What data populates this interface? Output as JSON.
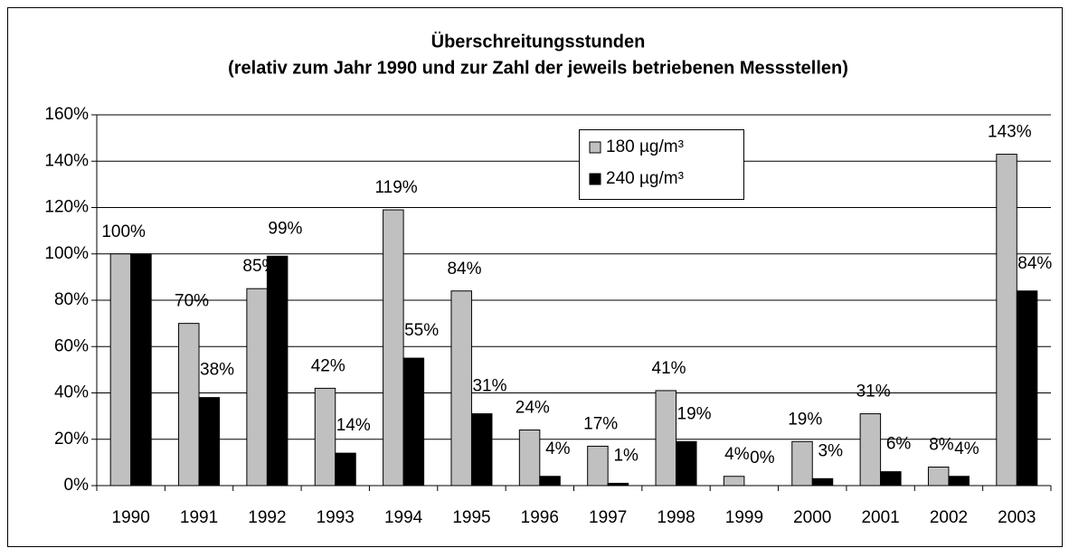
{
  "chart_data": {
    "type": "bar",
    "title": "Überschreitungsstunden",
    "subtitle": "(relativ zum Jahr 1990 und zur Zahl der jeweils betriebenen Messstellen)",
    "categories": [
      "1990",
      "1991",
      "1992",
      "1993",
      "1994",
      "1995",
      "1996",
      "1997",
      "1998",
      "1999",
      "2000",
      "2001",
      "2002",
      "2003"
    ],
    "series": [
      {
        "name": "180 µg/m³",
        "color": "#c0c0c0",
        "values": [
          100,
          70,
          85,
          42,
          119,
          84,
          24,
          17,
          41,
          4,
          19,
          31,
          8,
          143
        ],
        "value_labels": [
          "100%",
          "70%",
          "85%",
          "42%",
          "119%",
          "84%",
          "24%",
          "17%",
          "41%",
          "4%",
          "19%",
          "31%",
          "8%",
          "143%"
        ]
      },
      {
        "name": "240 µg/m³",
        "color": "#000000",
        "values": [
          100,
          38,
          99,
          14,
          55,
          31,
          4,
          1,
          19,
          0,
          3,
          6,
          4,
          84
        ],
        "value_labels": [
          null,
          "38%",
          "99%",
          "14%",
          "55%",
          "31%",
          "4%",
          "1%",
          "19%",
          "0%",
          "3%",
          "6%",
          "4%",
          "84%"
        ]
      }
    ],
    "ylim": [
      0,
      160
    ],
    "yticks": [
      {
        "value": 0,
        "label": "0%"
      },
      {
        "value": 20,
        "label": "20%"
      },
      {
        "value": 40,
        "label": "40%"
      },
      {
        "value": 60,
        "label": "60%"
      },
      {
        "value": 80,
        "label": "80%"
      },
      {
        "value": 100,
        "label": "100%"
      },
      {
        "value": 120,
        "label": "120%"
      },
      {
        "value": 140,
        "label": "140%"
      },
      {
        "value": 160,
        "label": "160%"
      }
    ],
    "grid": true,
    "legend": "top-right"
  }
}
